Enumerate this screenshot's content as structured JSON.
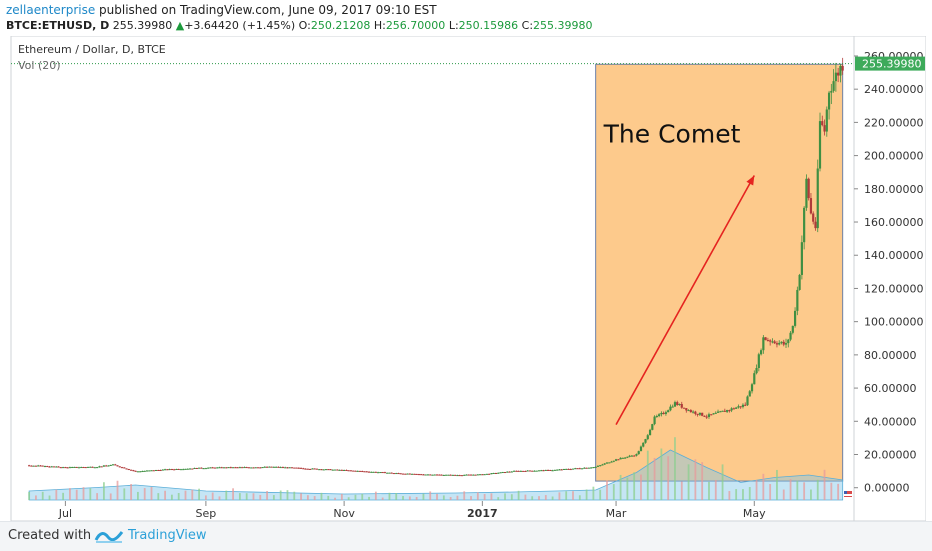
{
  "header": {
    "author": "zellaenterprise",
    "published": " published on TradingView.com, June 09, 2017 09:10 EST",
    "symbol": "BTCE:ETHUSD, D",
    "last": "255.39980",
    "change_arrow": "▲",
    "change": "+3.64420 (+1.45%)",
    "o_label": "O:",
    "o": "250.21208",
    "h_label": "H:",
    "h": "256.70000",
    "l_label": "L:",
    "l": "250.15986",
    "c_label": "C:",
    "c": "255.39980"
  },
  "chart_data": {
    "type": "candlestick",
    "title": "Ethereum / Dollar, D, BTCE",
    "volume_label": "Vol (20)",
    "annotation": "The Comet",
    "last_price_label": "255.39980",
    "x_ticks": [
      {
        "label": "Jul",
        "date": "2016-07-01"
      },
      {
        "label": "Sep",
        "date": "2016-09-01"
      },
      {
        "label": "Nov",
        "date": "2016-11-01"
      },
      {
        "label": "2017",
        "date": "2017-01-01"
      },
      {
        "label": "Mar",
        "date": "2017-03-01"
      },
      {
        "label": "May",
        "date": "2017-05-01"
      }
    ],
    "xlim": [
      "2016-06-07",
      "2017-06-14"
    ],
    "y_ticks": [
      "260.00000",
      "240.00000",
      "220.00000",
      "200.00000",
      "180.00000",
      "160.00000",
      "140.00000",
      "120.00000",
      "100.00000",
      "80.00000",
      "60.00000",
      "40.00000",
      "20.00000",
      "0.00000"
    ],
    "ylim": [
      -8,
      266
    ],
    "highlight_range": {
      "start": "2017-02-20",
      "end": "2017-06-09",
      "low": 4,
      "high": 255
    },
    "arrow": {
      "from": {
        "date": "2017-03-01",
        "price": 38
      },
      "to": {
        "date": "2017-05-01",
        "price": 188
      }
    },
    "price_path": [
      {
        "date": "2016-06-15",
        "price": 13.5
      },
      {
        "date": "2016-07-01",
        "price": 12.2
      },
      {
        "date": "2016-07-15",
        "price": 12.6
      },
      {
        "date": "2016-07-22",
        "price": 13.8
      },
      {
        "date": "2016-08-01",
        "price": 9.8
      },
      {
        "date": "2016-08-15",
        "price": 11.0
      },
      {
        "date": "2016-09-01",
        "price": 12.0
      },
      {
        "date": "2016-10-01",
        "price": 12.5
      },
      {
        "date": "2016-11-01",
        "price": 10.5
      },
      {
        "date": "2016-12-01",
        "price": 8.2
      },
      {
        "date": "2016-12-20",
        "price": 7.6
      },
      {
        "date": "2017-01-01",
        "price": 8.0
      },
      {
        "date": "2017-01-15",
        "price": 10.0
      },
      {
        "date": "2017-02-01",
        "price": 10.6
      },
      {
        "date": "2017-02-20",
        "price": 12.5
      },
      {
        "date": "2017-03-01",
        "price": 17.0
      },
      {
        "date": "2017-03-10",
        "price": 20.0
      },
      {
        "date": "2017-03-14",
        "price": 29.0
      },
      {
        "date": "2017-03-18",
        "price": 42.0
      },
      {
        "date": "2017-03-22",
        "price": 45.0
      },
      {
        "date": "2017-03-27",
        "price": 51.0
      },
      {
        "date": "2017-04-03",
        "price": 46.0
      },
      {
        "date": "2017-04-10",
        "price": 43.0
      },
      {
        "date": "2017-04-20",
        "price": 47.0
      },
      {
        "date": "2017-04-27",
        "price": 50.0
      },
      {
        "date": "2017-05-01",
        "price": 68.0
      },
      {
        "date": "2017-05-05",
        "price": 90.0
      },
      {
        "date": "2017-05-10",
        "price": 88.0
      },
      {
        "date": "2017-05-15",
        "price": 86.0
      },
      {
        "date": "2017-05-18",
        "price": 97.0
      },
      {
        "date": "2017-05-21",
        "price": 130.0
      },
      {
        "date": "2017-05-24",
        "price": 185.0
      },
      {
        "date": "2017-05-26",
        "price": 165.0
      },
      {
        "date": "2017-05-28",
        "price": 157.0
      },
      {
        "date": "2017-05-30",
        "price": 220.0
      },
      {
        "date": "2017-06-01",
        "price": 215.0
      },
      {
        "date": "2017-06-03",
        "price": 240.0
      },
      {
        "date": "2017-06-06",
        "price": 248.0
      },
      {
        "date": "2017-06-09",
        "price": 255.4
      }
    ],
    "volume_path": [
      {
        "date": "2016-06-15",
        "vol": 0.18
      },
      {
        "date": "2016-07-15",
        "vol": 0.25
      },
      {
        "date": "2016-08-01",
        "vol": 0.3
      },
      {
        "date": "2016-09-01",
        "vol": 0.18
      },
      {
        "date": "2016-11-01",
        "vol": 0.12
      },
      {
        "date": "2016-12-20",
        "vol": 0.14
      },
      {
        "date": "2017-01-15",
        "vol": 0.16
      },
      {
        "date": "2017-02-20",
        "vol": 0.2
      },
      {
        "date": "2017-03-10",
        "vol": 0.55
      },
      {
        "date": "2017-03-25",
        "vol": 1.0
      },
      {
        "date": "2017-04-10",
        "vol": 0.65
      },
      {
        "date": "2017-04-25",
        "vol": 0.35
      },
      {
        "date": "2017-05-10",
        "vol": 0.45
      },
      {
        "date": "2017-05-25",
        "vol": 0.5
      },
      {
        "date": "2017-06-09",
        "vol": 0.4
      }
    ]
  },
  "footer": {
    "created_with": "Created with",
    "brand": "TradingView"
  }
}
